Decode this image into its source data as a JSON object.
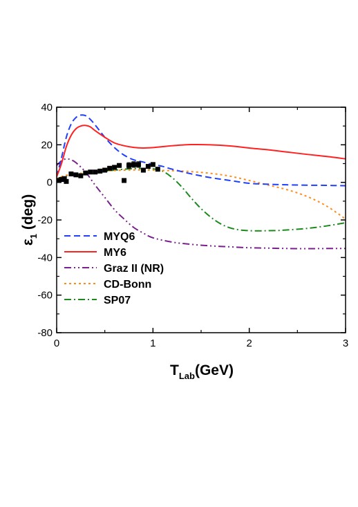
{
  "chart_data": {
    "type": "line",
    "xlabel": {
      "main": "T",
      "sub": "Lab",
      "unit": "(GeV)"
    },
    "ylabel": {
      "main": "ε",
      "sub": "1",
      "unit": " (deg)"
    },
    "xlim": [
      0,
      3
    ],
    "ylim": [
      -80,
      40
    ],
    "xticks": [
      0,
      1,
      2,
      3
    ],
    "yticks": [
      -80,
      -60,
      -40,
      -20,
      0,
      20,
      40
    ],
    "x_tick_labels": [
      "0",
      "1",
      "2",
      "3"
    ],
    "y_tick_labels": [
      "-80",
      "-60",
      "-40",
      "-20",
      "0",
      "20",
      "40"
    ],
    "grid": false,
    "legend_position": "lower-left",
    "series": [
      {
        "name": "MYQ6",
        "color": "#1f3fff",
        "dash": "dashed",
        "x": [
          0,
          0.05,
          0.1,
          0.15,
          0.2,
          0.25,
          0.3,
          0.35,
          0.4,
          0.5,
          0.6,
          0.7,
          0.8,
          0.9,
          1.0,
          1.1,
          1.2,
          1.4,
          1.6,
          1.8,
          2.0,
          2.2,
          2.4,
          2.6,
          2.8,
          3.0
        ],
        "y": [
          3,
          13,
          24,
          31,
          34.5,
          35.8,
          35.5,
          33.5,
          30.5,
          24,
          18.5,
          14.5,
          12,
          10.8,
          9.5,
          8.5,
          7,
          4.5,
          2.5,
          1,
          -0.5,
          -1,
          -1.3,
          -1.5,
          -1.6,
          -1.8
        ]
      },
      {
        "name": "MY6",
        "color": "#ff2020",
        "dash": "solid",
        "x": [
          0,
          0.05,
          0.1,
          0.15,
          0.2,
          0.25,
          0.3,
          0.35,
          0.4,
          0.5,
          0.6,
          0.7,
          0.8,
          0.9,
          1.0,
          1.1,
          1.2,
          1.4,
          1.6,
          1.8,
          2.0,
          2.2,
          2.4,
          2.6,
          2.8,
          3.0
        ],
        "y": [
          3,
          10,
          19,
          25,
          28.5,
          30,
          30.3,
          29.5,
          27.5,
          24,
          21,
          19.5,
          18.6,
          18.3,
          18.5,
          19,
          19.5,
          20.1,
          20,
          19.4,
          18.3,
          17.3,
          16.1,
          14.9,
          13.8,
          12.5
        ]
      },
      {
        "name": "Graz II (NR)",
        "color": "#7a1f8f",
        "dash": "dashdotdot",
        "x": [
          0,
          0.05,
          0.1,
          0.15,
          0.2,
          0.3,
          0.4,
          0.5,
          0.6,
          0.7,
          0.8,
          0.9,
          1.0,
          1.2,
          1.4,
          1.6,
          1.8,
          2.0,
          2.2,
          2.4,
          2.6,
          2.8,
          3.0
        ],
        "y": [
          9,
          11.5,
          12.5,
          12,
          10.5,
          5.5,
          -1.5,
          -8,
          -14.5,
          -19.5,
          -24,
          -27,
          -29.5,
          -31.8,
          -33,
          -33.8,
          -34.3,
          -34.8,
          -35,
          -35.2,
          -35.3,
          -35.2,
          -35.2
        ]
      },
      {
        "name": "CD-Bonn",
        "color": "#ff8c1a",
        "dash": "dotted",
        "x": [
          0,
          0.05,
          0.1,
          0.2,
          0.3,
          0.4,
          0.5,
          0.6,
          0.7,
          0.8,
          0.9,
          1.0,
          1.2,
          1.4,
          1.6,
          1.8,
          2.0,
          2.2,
          2.4,
          2.6,
          2.8,
          3.0
        ],
        "y": [
          2,
          3,
          3.8,
          4.5,
          5,
          5.5,
          6,
          6.3,
          6.5,
          6.6,
          6.6,
          6.5,
          6.2,
          5.7,
          4.8,
          3.3,
          1,
          -1.5,
          -4,
          -7.5,
          -12.5,
          -19.5
        ]
      },
      {
        "name": "SP07",
        "color": "#1a8a1a",
        "dash": "dashdot",
        "x": [
          0,
          0.1,
          0.2,
          0.3,
          0.4,
          0.5,
          0.6,
          0.7,
          0.8,
          0.9,
          1.0,
          1.1,
          1.2,
          1.3,
          1.4,
          1.5,
          1.6,
          1.7,
          1.8,
          1.9,
          2.0,
          2.1,
          2.2,
          2.3,
          2.4,
          2.6,
          2.8,
          3.0
        ],
        "y": [
          2,
          3.5,
          4.5,
          5,
          5.5,
          6,
          6.5,
          7,
          7.3,
          7.4,
          7.2,
          6,
          2.5,
          -2.5,
          -8.5,
          -14,
          -18.5,
          -22,
          -24.2,
          -25.3,
          -25.7,
          -25.8,
          -25.7,
          -25.6,
          -25.3,
          -24.5,
          -23.2,
          -21.5
        ]
      }
    ],
    "data_points": {
      "marker": "square",
      "x": [
        0.02,
        0.05,
        0.08,
        0.1,
        0.15,
        0.2,
        0.25,
        0.3,
        0.35,
        0.4,
        0.45,
        0.5,
        0.55,
        0.6,
        0.65,
        0.7,
        0.75,
        0.8,
        0.85,
        0.9,
        0.95,
        1.0,
        1.05
      ],
      "y": [
        1,
        1.5,
        2,
        0.5,
        4.5,
        4,
        3.5,
        5,
        5.5,
        5.5,
        6,
        6.5,
        7.5,
        8,
        9,
        1,
        9,
        9.5,
        9.5,
        6.5,
        8.5,
        9.5,
        7
      ],
      "err": [
        0,
        0,
        0,
        0,
        0,
        0,
        0,
        0,
        0,
        0,
        0,
        0,
        0,
        0,
        0,
        0,
        1.5,
        1.5,
        1.5,
        0,
        0,
        0,
        0
      ]
    }
  }
}
